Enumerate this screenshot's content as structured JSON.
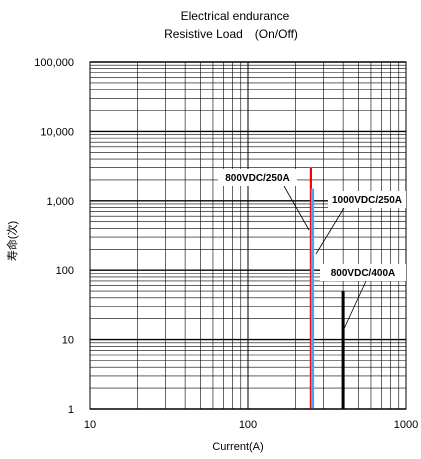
{
  "chart_data": {
    "type": "line",
    "title": "Electrical endurance",
    "subtitle": "Resistive Load　(On/Off)",
    "xlabel": "Current(A)",
    "ylabel": "寿命(次)",
    "x_scale": "log",
    "y_scale": "log",
    "xlim": [
      10,
      1000
    ],
    "ylim": [
      1,
      100000
    ],
    "grid": true,
    "x_ticks": [
      10,
      100,
      1000
    ],
    "x_tick_labels": [
      "10",
      "100",
      "1000"
    ],
    "y_ticks": [
      1,
      10,
      100,
      1000,
      10000,
      100000
    ],
    "y_tick_labels": [
      "1",
      "10",
      "100",
      "1,000",
      "10,000",
      "100,000"
    ],
    "series": [
      {
        "name": "800VDC/250A",
        "color": "#ff0000",
        "points": [
          {
            "x": 250,
            "y": 1
          },
          {
            "x": 250,
            "y": 3000
          }
        ]
      },
      {
        "name": "1000VDC/250A",
        "color": "#3fa9f5",
        "points": [
          {
            "x": 256,
            "y": 1
          },
          {
            "x": 256,
            "y": 1500
          }
        ]
      },
      {
        "name": "800VDC/400A",
        "color": "#000000",
        "points": [
          {
            "x": 400,
            "y": 1
          },
          {
            "x": 400,
            "y": 50
          }
        ]
      }
    ]
  }
}
